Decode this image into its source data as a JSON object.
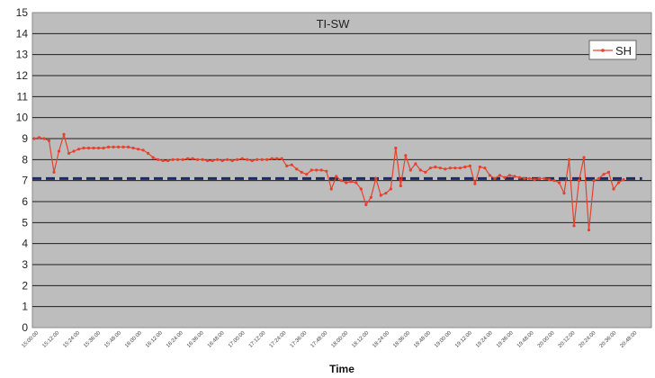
{
  "chart_data": {
    "type": "line",
    "title": "TI-SW",
    "xlabel": "Time",
    "ylabel": "",
    "ylim": [
      0,
      15
    ],
    "yticks": [
      0,
      1,
      2,
      3,
      4,
      5,
      6,
      7,
      8,
      9,
      10,
      11,
      12,
      13,
      14,
      15
    ],
    "grid": true,
    "legend_position": "top-right",
    "x_ticks": [
      "15:00:00",
      "15:12:00",
      "15:24:00",
      "15:36:00",
      "15:48:00",
      "16:00:00",
      "16:12:00",
      "16:24:00",
      "16:36:00",
      "16:48:00",
      "17:00:00",
      "17:12:00",
      "17:24:00",
      "17:36:00",
      "17:48:00",
      "18:00:00",
      "18:12:00",
      "18:24:00",
      "18:36:00",
      "18:48:00",
      "19:00:00",
      "19:12:00",
      "19:24:00",
      "19:36:00",
      "19:48:00",
      "20:00:00",
      "20:12:00",
      "20:24:00",
      "20:36:00",
      "20:48:00"
    ],
    "reference_line": {
      "value": 7.1,
      "color": "#1c2a6b"
    },
    "series": [
      {
        "name": "SH",
        "color": "#e8402a",
        "values": [
          9.0,
          9.05,
          9.0,
          8.9,
          7.4,
          8.4,
          9.2,
          8.3,
          8.4,
          8.5,
          8.55,
          8.55,
          8.55,
          8.55,
          8.55,
          8.6,
          8.6,
          8.6,
          8.6,
          8.6,
          8.55,
          8.5,
          8.45,
          8.3,
          8.1,
          8.0,
          7.95,
          7.95,
          8.0,
          8.0,
          8.0,
          8.05,
          8.05,
          8.0,
          8.0,
          7.95,
          7.95,
          8.0,
          7.95,
          8.0,
          7.95,
          8.0,
          8.05,
          8.0,
          7.95,
          8.0,
          8.0,
          8.0,
          8.05,
          8.05,
          8.05,
          7.7,
          7.75,
          7.55,
          7.4,
          7.3,
          7.5,
          7.5,
          7.5,
          7.45,
          6.6,
          7.2,
          7.0,
          6.9,
          6.95,
          6.9,
          6.6,
          5.85,
          6.2,
          7.1,
          6.3,
          6.4,
          6.6,
          8.55,
          6.75,
          8.2,
          7.5,
          7.8,
          7.5,
          7.4,
          7.6,
          7.65,
          7.6,
          7.55,
          7.6,
          7.6,
          7.6,
          7.65,
          7.7,
          6.85,
          7.65,
          7.6,
          7.25,
          7.1,
          7.25,
          7.15,
          7.25,
          7.2,
          7.15,
          7.1,
          7.1,
          7.05,
          7.1,
          7.1,
          7.05,
          7.0,
          6.9,
          6.4,
          8.0,
          4.85,
          7.0,
          8.1,
          4.65,
          7.0,
          7.1,
          7.3,
          7.4,
          6.6,
          6.9,
          7.05
        ]
      }
    ]
  }
}
